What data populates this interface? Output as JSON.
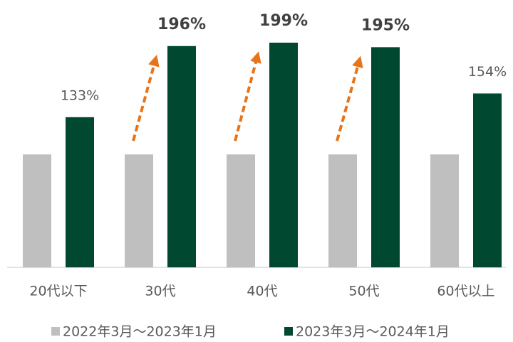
{
  "chart_data": {
    "type": "bar",
    "categories": [
      "20代以下",
      "30代",
      "40代",
      "50代",
      "60代以上"
    ],
    "series": [
      {
        "name": "2022年3月～2023年1月",
        "color": "#bfbfbf",
        "values": [
          100,
          100,
          100,
          100,
          100
        ]
      },
      {
        "name": "2023年3月～2024年1月",
        "color": "#00482f",
        "values": [
          133,
          196,
          199,
          195,
          154
        ],
        "value_labels": [
          "133%",
          "196%",
          "199%",
          "195%",
          "154%"
        ]
      }
    ]
  }
}
